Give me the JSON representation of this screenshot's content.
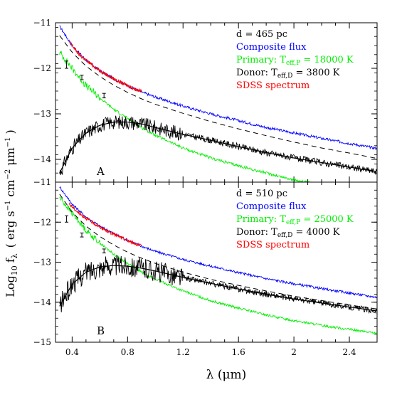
{
  "chart_data": {
    "type": "line",
    "ylabel": "Log",
    "ylabel_sub": "10",
    "ylabel_f": "f",
    "ylabel_lambda": "λ",
    "ylabel_units": "( erg s",
    "ylabel_exp1": "−1",
    "ylabel_cm": "cm",
    "ylabel_exp2": "−2",
    "ylabel_mu": "μm",
    "ylabel_exp3": "−1",
    "ylabel_close": ")",
    "xlabel": "λ (μm)",
    "xlim": [
      0.28,
      2.6
    ],
    "x_ticks": [
      "0.4",
      "0.8",
      "1.2",
      "1.6",
      "2",
      "2.4"
    ],
    "colors": {
      "composite": "#0000ff",
      "primary": "#00ee00",
      "donor": "#000000",
      "sdss": "#ff0000",
      "scaled": "#000000"
    },
    "panels": [
      {
        "panel_label": "A",
        "ylim": [
          -14.5,
          -11
        ],
        "y_ticks": [
          "−11",
          "−12",
          "−13",
          "−14"
        ],
        "legend": {
          "distance": "d = 465 pc",
          "composite": "Composite flux",
          "primary_prefix": "Primary: T",
          "primary_sub": "eff,P",
          "primary_value": " = 18000 K",
          "donor_prefix": "Donor: T",
          "donor_sub": "eff,D",
          "donor_value": " = 3800 K",
          "sdss": "SDSS spectrum"
        },
        "series": [
          {
            "name": "Composite flux",
            "x": [
              0.31,
              0.4,
              0.5,
              0.6,
              0.7,
              0.8,
              0.9,
              1.0,
              1.2,
              1.4,
              1.6,
              1.8,
              2.0,
              2.2,
              2.4,
              2.6
            ],
            "y": [
              -11.08,
              -11.5,
              -11.82,
              -12.05,
              -12.23,
              -12.38,
              -12.52,
              -12.63,
              -12.83,
              -13.0,
              -13.15,
              -13.3,
              -13.42,
              -13.54,
              -13.65,
              -13.76
            ]
          },
          {
            "name": "Primary: Teff,P = 18000 K",
            "x": [
              0.31,
              0.4,
              0.5,
              0.6,
              0.7,
              0.8,
              0.9,
              1.0,
              1.2,
              1.4,
              1.6,
              1.8,
              2.0,
              2.2,
              2.4,
              2.6
            ],
            "y": [
              -11.65,
              -12.0,
              -12.38,
              -12.65,
              -12.9,
              -13.1,
              -13.3,
              -13.47,
              -13.75,
              -13.97,
              -14.14,
              -14.3,
              -14.45,
              -14.57,
              -14.68,
              -14.8
            ]
          },
          {
            "name": "Donor: Teff,D = 3800 K",
            "x": [
              0.31,
              0.4,
              0.5,
              0.6,
              0.7,
              0.8,
              0.9,
              1.0,
              1.2,
              1.4,
              1.6,
              1.8,
              2.0,
              2.2,
              2.4,
              2.6
            ],
            "y": [
              -14.3,
              -13.75,
              -13.42,
              -13.25,
              -13.18,
              -13.18,
              -13.22,
              -13.3,
              -13.45,
              -13.58,
              -13.72,
              -13.85,
              -13.97,
              -14.07,
              -14.17,
              -14.27
            ]
          },
          {
            "name": "SDSS spectrum",
            "x": [
              0.38,
              0.45,
              0.5,
              0.55,
              0.6,
              0.65,
              0.7,
              0.75,
              0.8,
              0.85,
              0.9
            ],
            "y": [
              -11.42,
              -11.7,
              -11.82,
              -11.94,
              -12.05,
              -12.14,
              -12.23,
              -12.31,
              -12.38,
              -12.45,
              -12.5
            ]
          },
          {
            "name": "",
            "dashed": true,
            "x": [
              0.31,
              0.4,
              0.5,
              0.6,
              0.7,
              0.8,
              0.9,
              1.0,
              1.2,
              1.4,
              1.6,
              1.8,
              2.0,
              2.2,
              2.4,
              2.6
            ],
            "y": [
              -11.28,
              -11.65,
              -11.95,
              -12.18,
              -12.37,
              -12.53,
              -12.67,
              -12.79,
              -12.99,
              -13.17,
              -13.33,
              -13.48,
              -13.62,
              -13.75,
              -13.86,
              -13.98
            ]
          }
        ],
        "error_bars": [
          {
            "x": 0.36,
            "y": -11.92,
            "err": 0.08
          },
          {
            "x": 0.47,
            "y": -12.2,
            "err": 0.05
          },
          {
            "x": 0.63,
            "y": -12.6,
            "err": 0.05
          }
        ]
      },
      {
        "panel_label": "B",
        "ylim": [
          -15,
          -11
        ],
        "y_ticks": [
          "−11",
          "−12",
          "−13",
          "−14",
          "−15"
        ],
        "legend": {
          "distance": "d = 510 pc",
          "composite": "Composite flux",
          "primary_prefix": "Primary: T",
          "primary_sub": "eff,P",
          "primary_value": " = 25000 K",
          "donor_prefix": "Donor: T",
          "donor_sub": "eff,D",
          "donor_value": " = 4000 K",
          "sdss": "SDSS spectrum"
        },
        "series": [
          {
            "name": "Composite flux",
            "x": [
              0.31,
              0.4,
              0.5,
              0.6,
              0.7,
              0.8,
              0.9,
              1.0,
              1.2,
              1.4,
              1.6,
              1.8,
              2.0,
              2.2,
              2.4,
              2.6
            ],
            "y": [
              -11.12,
              -11.55,
              -11.87,
              -12.1,
              -12.28,
              -12.45,
              -12.6,
              -12.73,
              -12.93,
              -13.1,
              -13.26,
              -13.41,
              -13.54,
              -13.66,
              -13.77,
              -13.88
            ]
          },
          {
            "name": "Primary: Teff,P = 25000 K",
            "x": [
              0.31,
              0.4,
              0.5,
              0.6,
              0.7,
              0.8,
              0.9,
              1.0,
              1.2,
              1.4,
              1.6,
              1.8,
              2.0,
              2.2,
              2.4,
              2.6
            ],
            "y": [
              -11.38,
              -11.78,
              -12.2,
              -12.52,
              -12.8,
              -13.03,
              -13.24,
              -13.42,
              -13.72,
              -13.96,
              -14.15,
              -14.32,
              -14.46,
              -14.58,
              -14.68,
              -14.78
            ]
          },
          {
            "name": "Donor: Teff,D = 4000 K",
            "x": [
              0.31,
              0.4,
              0.5,
              0.6,
              0.7,
              0.8,
              0.9,
              1.0,
              1.2,
              1.4,
              1.6,
              1.8,
              2.0,
              2.2,
              2.4,
              2.6
            ],
            "y": [
              -14.1,
              -13.55,
              -13.25,
              -13.12,
              -13.08,
              -13.1,
              -13.15,
              -13.22,
              -13.38,
              -13.53,
              -13.67,
              -13.8,
              -13.92,
              -14.02,
              -14.12,
              -14.22
            ]
          },
          {
            "name": "SDSS spectrum",
            "x": [
              0.38,
              0.45,
              0.5,
              0.55,
              0.6,
              0.65,
              0.7,
              0.75,
              0.8,
              0.85,
              0.9
            ],
            "y": [
              -11.55,
              -11.78,
              -11.9,
              -12.02,
              -12.12,
              -12.22,
              -12.3,
              -12.38,
              -12.46,
              -12.53,
              -12.6
            ]
          },
          {
            "name": "",
            "dashed": true,
            "x": [
              0.31,
              0.4,
              0.5,
              0.6,
              0.7,
              0.8,
              0.9,
              1.0,
              1.2,
              1.4,
              1.6,
              1.8,
              2.0,
              2.2,
              2.4,
              2.6
            ],
            "y": [
              -11.3,
              -11.75,
              -12.1,
              -12.36,
              -12.57,
              -12.75,
              -12.9,
              -13.03,
              -13.25,
              -13.43,
              -13.58,
              -13.72,
              -13.85,
              -13.96,
              -14.07,
              -14.17
            ]
          }
        ],
        "error_bars": [
          {
            "x": 0.36,
            "y": -11.92,
            "err": 0.08
          },
          {
            "x": 0.47,
            "y": -12.32,
            "err": 0.05
          },
          {
            "x": 0.63,
            "y": -12.72,
            "err": 0.05
          }
        ]
      }
    ]
  }
}
